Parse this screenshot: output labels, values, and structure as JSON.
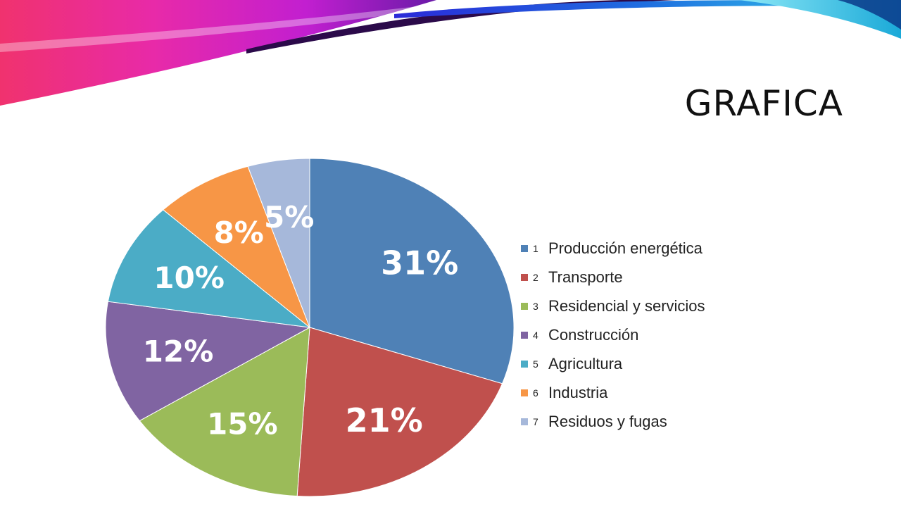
{
  "slide": {
    "title": "GRAFICA"
  },
  "chart_data": {
    "type": "pie",
    "categories": [
      "Producción energética",
      "Transporte",
      "Residencial y servicios",
      "Construcción",
      "Agricultura",
      "Industria",
      "Residuos y fugas"
    ],
    "numbers": [
      "1",
      "2",
      "3",
      "4",
      "5",
      "6",
      "7"
    ],
    "values": [
      31,
      21,
      15,
      12,
      10,
      8,
      5
    ],
    "labels": [
      "31%",
      "21%",
      "15%",
      "12%",
      "10%",
      "8%",
      "5%"
    ],
    "colors": [
      "#4f81b6",
      "#c0504d",
      "#9bbb59",
      "#8064a2",
      "#4bacc6",
      "#f79646",
      "#a6b8da"
    ],
    "legend_position": "right"
  }
}
